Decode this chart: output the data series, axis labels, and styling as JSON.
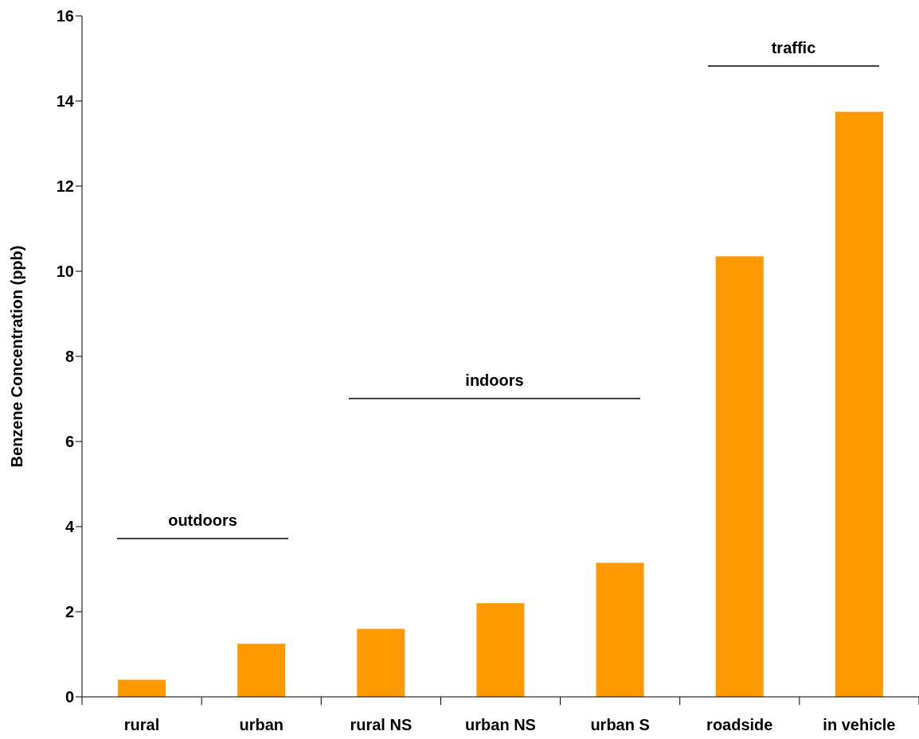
{
  "chart_data": {
    "type": "bar",
    "ylabel": "Benzene Concentration (ppb)",
    "categories": [
      "rural",
      "urban",
      "rural NS",
      "urban NS",
      "urban S",
      "roadside",
      "in vehicle"
    ],
    "values": [
      0.4,
      1.25,
      1.6,
      2.2,
      3.15,
      10.35,
      13.75
    ],
    "color": "#ff9900",
    "ylim": [
      0,
      16
    ],
    "yticks": [
      0,
      2,
      4,
      6,
      8,
      10,
      12,
      14,
      16
    ],
    "grid": false,
    "legend": false,
    "annotations": [
      "outdoors",
      "indoors",
      "traffic"
    ]
  }
}
